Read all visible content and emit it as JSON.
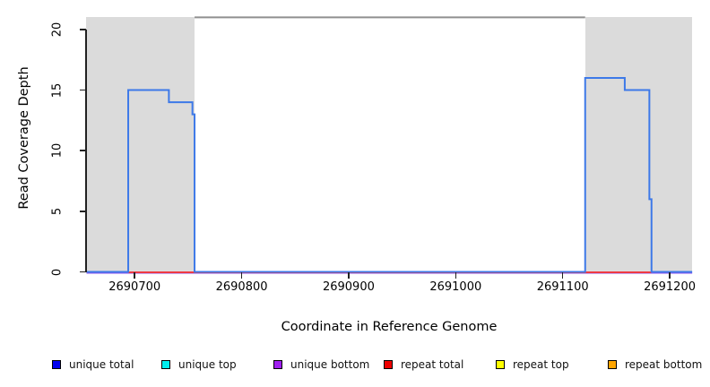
{
  "x_axis": {
    "label": "Coordinate in Reference Genome",
    "ticks": [
      "2690700",
      "2690800",
      "2690900",
      "2691000",
      "2691100",
      "2691200"
    ]
  },
  "y_axis": {
    "label": "Read Coverage Depth",
    "ticks": [
      "0",
      "5",
      "10",
      "15",
      "20"
    ]
  },
  "legend": {
    "items": [
      {
        "label": "unique total",
        "color": "#0000ee"
      },
      {
        "label": "unique top",
        "color": "#00eeee"
      },
      {
        "label": "unique bottom",
        "color": "#a020f0"
      },
      {
        "label": "repeat total",
        "color": "#ee0000"
      },
      {
        "label": "repeat top",
        "color": "#ffff00"
      },
      {
        "label": "repeat bottom",
        "color": "#ffa500"
      }
    ]
  },
  "colors": {
    "shaded_region": "#dbdbdb",
    "box_top_line": "#8f8f8f",
    "unique_total_line": "#3d79e8",
    "repeat_total_line": "#ee3a44",
    "unique_bottom_line": "#8b55ee"
  },
  "chart_data": {
    "type": "line",
    "subtype": "step-coverage",
    "title": "",
    "xlabel": "Coordinate in Reference Genome",
    "ylabel": "Read Coverage Depth",
    "xlim": [
      2690655,
      2691221
    ],
    "ylim": [
      0,
      21
    ],
    "x_ticks": [
      2690700,
      2690800,
      2690900,
      2691000,
      2691100,
      2691200
    ],
    "y_ticks": [
      0,
      5,
      10,
      15,
      20
    ],
    "grid": false,
    "legend_position": "bottom",
    "box_top_value": 21,
    "shaded_regions": [
      {
        "x_start": 2690655,
        "x_end": 2690756
      },
      {
        "x_start": 2691121,
        "x_end": 2691221
      }
    ],
    "series": [
      {
        "name": "unique total",
        "color": "#3d79e8",
        "visible": true,
        "segments": [
          [
            2690655,
            2690694,
            0
          ],
          [
            2690694,
            2690732,
            15
          ],
          [
            2690732,
            2690754,
            14
          ],
          [
            2690754,
            2690756,
            13
          ],
          [
            2690756,
            2691121,
            0
          ],
          [
            2691121,
            2691158,
            16
          ],
          [
            2691158,
            2691181,
            15
          ],
          [
            2691181,
            2691183,
            6
          ],
          [
            2691183,
            2691221,
            0
          ]
        ]
      },
      {
        "name": "repeat total",
        "color": "#ee3a44",
        "visible": true,
        "segments": [
          [
            2690694,
            2690756,
            0
          ],
          [
            2691121,
            2691183,
            0
          ]
        ]
      },
      {
        "name": "unique bottom",
        "color": "#8b55ee",
        "visible": true,
        "segments": [
          [
            2690655,
            2691221,
            0
          ]
        ]
      },
      {
        "name": "unique top",
        "color": "#00eeee",
        "visible": false,
        "segments": [
          [
            2690655,
            2691221,
            0
          ]
        ]
      },
      {
        "name": "repeat top",
        "color": "#ffff00",
        "visible": false,
        "segments": [
          [
            2690655,
            2691221,
            0
          ]
        ]
      },
      {
        "name": "repeat bottom",
        "color": "#ffa500",
        "visible": false,
        "segments": [
          [
            2690655,
            2691221,
            0
          ]
        ]
      }
    ]
  }
}
